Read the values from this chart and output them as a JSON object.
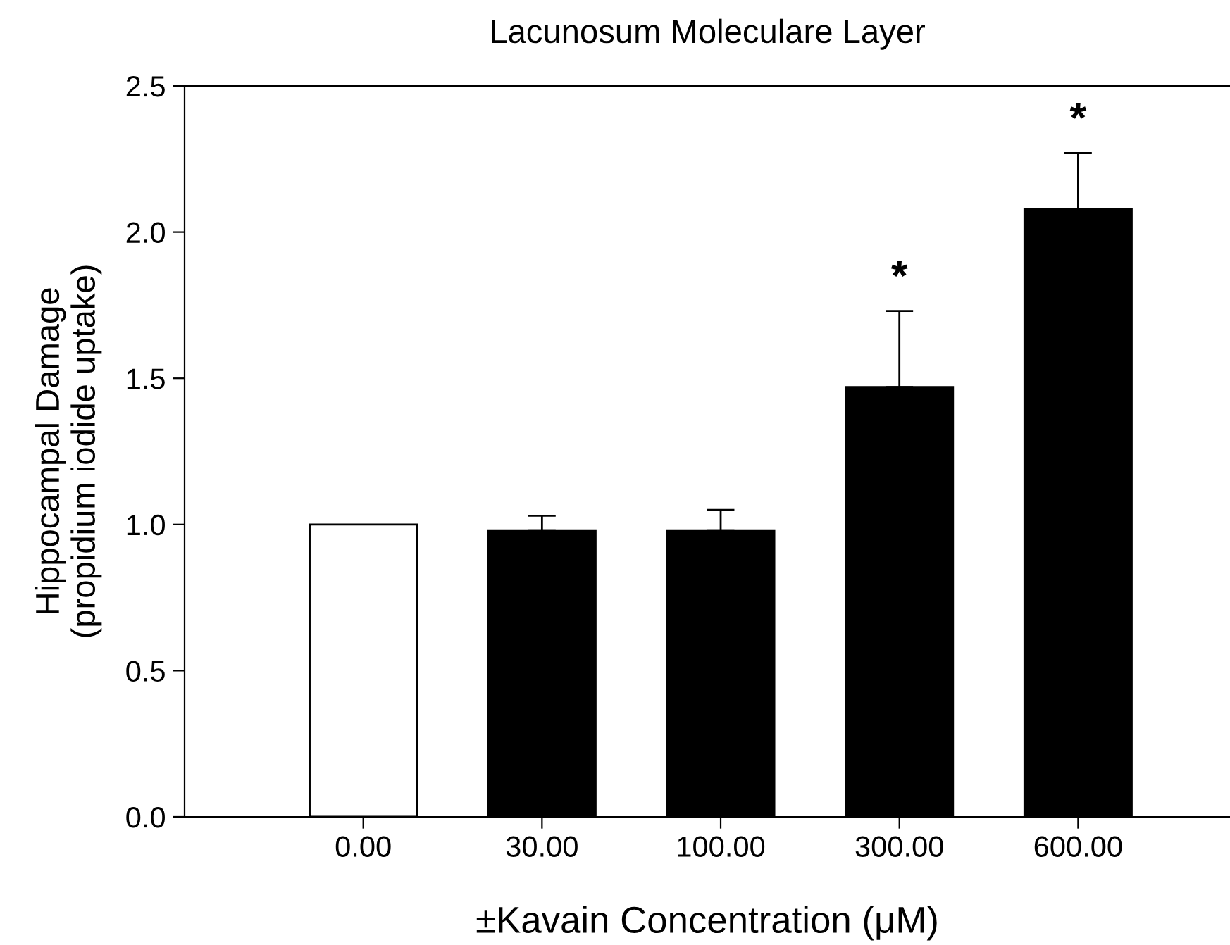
{
  "chart_data": {
    "type": "bar",
    "title": "Lacunosum Moleculare Layer",
    "xlabel": "±Kavain Concentration (μM)",
    "ylabel": "Hippocampal Damage\n(propidium iodide uptake)",
    "categories": [
      "0.00",
      "30.00",
      "100.00",
      "300.00",
      "600.00"
    ],
    "values": [
      1.0,
      0.98,
      0.98,
      1.47,
      2.08
    ],
    "colors": [
      "#ffffff",
      "#000000",
      "#000000",
      "#000000",
      "#000000"
    ],
    "errors": [
      null,
      [
        0.98,
        1.03
      ],
      [
        0.98,
        1.05
      ],
      [
        1.47,
        1.73
      ],
      [
        2.08,
        2.27
      ]
    ],
    "annotations": [
      {
        "text": "*",
        "x": "300.00",
        "y": 1.73
      },
      {
        "text": "*",
        "x": "600.00",
        "y": 2.27
      }
    ],
    "ylim": [
      0,
      2.5
    ],
    "yticks": [
      {
        "value": 0,
        "label": "0.0"
      },
      {
        "value": 0.5,
        "label": "0.5"
      },
      {
        "value": 1,
        "label": "1.0"
      },
      {
        "value": 1.5,
        "label": "1.5"
      },
      {
        "value": 2,
        "label": "2.0"
      },
      {
        "value": 2.5,
        "label": "2.5"
      }
    ],
    "grid": false
  }
}
